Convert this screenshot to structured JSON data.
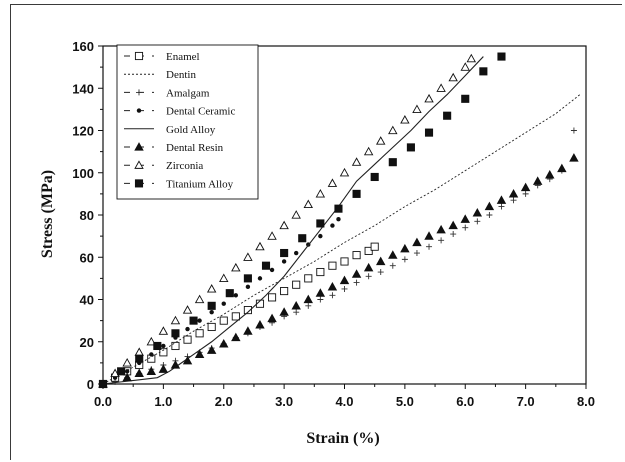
{
  "chart_data": {
    "type": "line",
    "xlabel": "Strain (%)",
    "ylabel": "Stress (MPa)",
    "xlim": [
      0,
      8
    ],
    "ylim": [
      0,
      160
    ],
    "x_ticks": [
      "0.0",
      "1.0",
      "2.0",
      "3.0",
      "4.0",
      "5.0",
      "6.0",
      "7.0",
      "8.0"
    ],
    "y_ticks": [
      "0",
      "20",
      "40",
      "60",
      "80",
      "100",
      "120",
      "140",
      "160"
    ],
    "legend_position": "top-left",
    "grid": false,
    "series": [
      {
        "name": "Enamel",
        "marker": "open-square",
        "line": "solid-short",
        "x": [
          0.0,
          0.2,
          0.4,
          0.6,
          0.8,
          1.0,
          1.2,
          1.4,
          1.6,
          1.8,
          2.0,
          2.2,
          2.4,
          2.6,
          2.8,
          3.0,
          3.2,
          3.4,
          3.6,
          3.8,
          4.0,
          4.2,
          4.4,
          4.5
        ],
        "y": [
          0,
          3,
          6,
          9,
          12,
          15,
          18,
          21,
          24,
          27,
          30,
          32,
          35,
          38,
          41,
          44,
          47,
          50,
          53,
          56,
          58,
          61,
          63,
          65
        ]
      },
      {
        "name": "Dentin",
        "marker": "none",
        "line": "dotted",
        "x": [
          0.0,
          0.5,
          1.0,
          1.5,
          2.0,
          2.5,
          3.0,
          3.5,
          4.0,
          4.5,
          5.0,
          5.5,
          6.0,
          6.5,
          7.0,
          7.5,
          7.9
        ],
        "y": [
          0,
          8,
          16,
          25,
          33,
          42,
          50,
          58,
          67,
          75,
          84,
          92,
          101,
          110,
          119,
          128,
          137
        ]
      },
      {
        "name": "Amalgam",
        "marker": "plus",
        "line": "none",
        "x": [
          0.2,
          0.4,
          0.6,
          0.8,
          1.0,
          1.2,
          1.4,
          1.6,
          1.8,
          2.0,
          2.2,
          2.4,
          2.6,
          2.8,
          3.0,
          3.2,
          3.4,
          3.6,
          3.8,
          4.0,
          4.2,
          4.4,
          4.6,
          4.8,
          5.0,
          5.2,
          5.4,
          5.6,
          5.8,
          6.0,
          6.2,
          6.4,
          6.6,
          6.8,
          7.0,
          7.2,
          7.4,
          7.6,
          7.8
        ],
        "y": [
          1,
          3,
          5,
          7,
          9,
          11,
          13,
          15,
          17,
          19,
          22,
          24,
          27,
          29,
          32,
          34,
          37,
          40,
          42,
          45,
          48,
          51,
          53,
          56,
          59,
          62,
          65,
          68,
          71,
          74,
          77,
          80,
          84,
          87,
          90,
          94,
          97,
          101,
          120
        ]
      },
      {
        "name": "Dental Ceramic",
        "marker": "filled-dot",
        "line": "dashed",
        "x": [
          0.0,
          0.2,
          0.4,
          0.6,
          0.8,
          1.0,
          1.2,
          1.4,
          1.6,
          1.8,
          2.0,
          2.2,
          2.4,
          2.6,
          2.8,
          3.0,
          3.2,
          3.4,
          3.6,
          3.8,
          3.9
        ],
        "y": [
          0,
          3,
          6,
          10,
          14,
          18,
          22,
          26,
          30,
          34,
          38,
          42,
          46,
          50,
          54,
          58,
          62,
          66,
          70,
          75,
          78
        ]
      },
      {
        "name": "Gold Alloy",
        "marker": "none",
        "line": "solid",
        "x": [
          0.0,
          0.3,
          0.6,
          0.9,
          1.1,
          1.3,
          1.5,
          1.8,
          2.1,
          2.4,
          2.7,
          3.0,
          3.3,
          3.6,
          3.9,
          4.2,
          4.5,
          4.8,
          5.1,
          5.4,
          5.7,
          6.0,
          6.3
        ],
        "y": [
          0,
          1,
          2,
          3,
          6,
          10,
          14,
          20,
          27,
          34,
          42,
          51,
          62,
          73,
          84,
          96,
          104,
          112,
          120,
          129,
          137,
          146,
          155
        ]
      },
      {
        "name": "Dental Resin",
        "marker": "filled-triangle",
        "line": "dashed",
        "x": [
          0.0,
          0.4,
          0.6,
          0.8,
          1.0,
          1.2,
          1.4,
          1.6,
          1.8,
          2.0,
          2.2,
          2.4,
          2.6,
          2.8,
          3.0,
          3.2,
          3.4,
          3.6,
          3.8,
          4.0,
          4.2,
          4.4,
          4.6,
          4.8,
          5.0,
          5.2,
          5.4,
          5.6,
          5.8,
          6.0,
          6.2,
          6.4,
          6.6,
          6.8,
          7.0,
          7.2,
          7.4,
          7.6,
          7.8
        ],
        "y": [
          0,
          3,
          5,
          6,
          7,
          9,
          11,
          14,
          16,
          19,
          22,
          25,
          28,
          31,
          34,
          37,
          40,
          43,
          46,
          49,
          52,
          55,
          58,
          61,
          64,
          67,
          70,
          73,
          75,
          78,
          81,
          84,
          87,
          90,
          93,
          96,
          99,
          102,
          107
        ]
      },
      {
        "name": "Zirconia",
        "marker": "open-triangle",
        "line": "dashed",
        "x": [
          0.0,
          0.2,
          0.4,
          0.6,
          0.8,
          1.0,
          1.2,
          1.4,
          1.6,
          1.8,
          2.0,
          2.2,
          2.4,
          2.6,
          2.8,
          3.0,
          3.2,
          3.4,
          3.6,
          3.8,
          4.0,
          4.2,
          4.4,
          4.6,
          4.8,
          5.0,
          5.2,
          5.4,
          5.6,
          5.8,
          6.0,
          6.1
        ],
        "y": [
          0,
          5,
          10,
          15,
          20,
          25,
          30,
          35,
          40,
          45,
          50,
          55,
          60,
          65,
          70,
          75,
          80,
          85,
          90,
          95,
          100,
          105,
          110,
          115,
          120,
          125,
          130,
          135,
          140,
          145,
          150,
          154
        ]
      },
      {
        "name": "Titanium Alloy",
        "marker": "filled-square",
        "line": "dashed",
        "x": [
          0.0,
          0.3,
          0.6,
          0.9,
          1.2,
          1.5,
          1.8,
          2.1,
          2.4,
          2.7,
          3.0,
          3.3,
          3.6,
          3.9,
          4.2,
          4.5,
          4.8,
          5.1,
          5.4,
          5.7,
          6.0,
          6.3,
          6.6
        ],
        "y": [
          0,
          6,
          12,
          18,
          24,
          30,
          37,
          43,
          50,
          56,
          62,
          69,
          76,
          83,
          90,
          98,
          105,
          112,
          119,
          127,
          135,
          148,
          155
        ]
      }
    ]
  }
}
